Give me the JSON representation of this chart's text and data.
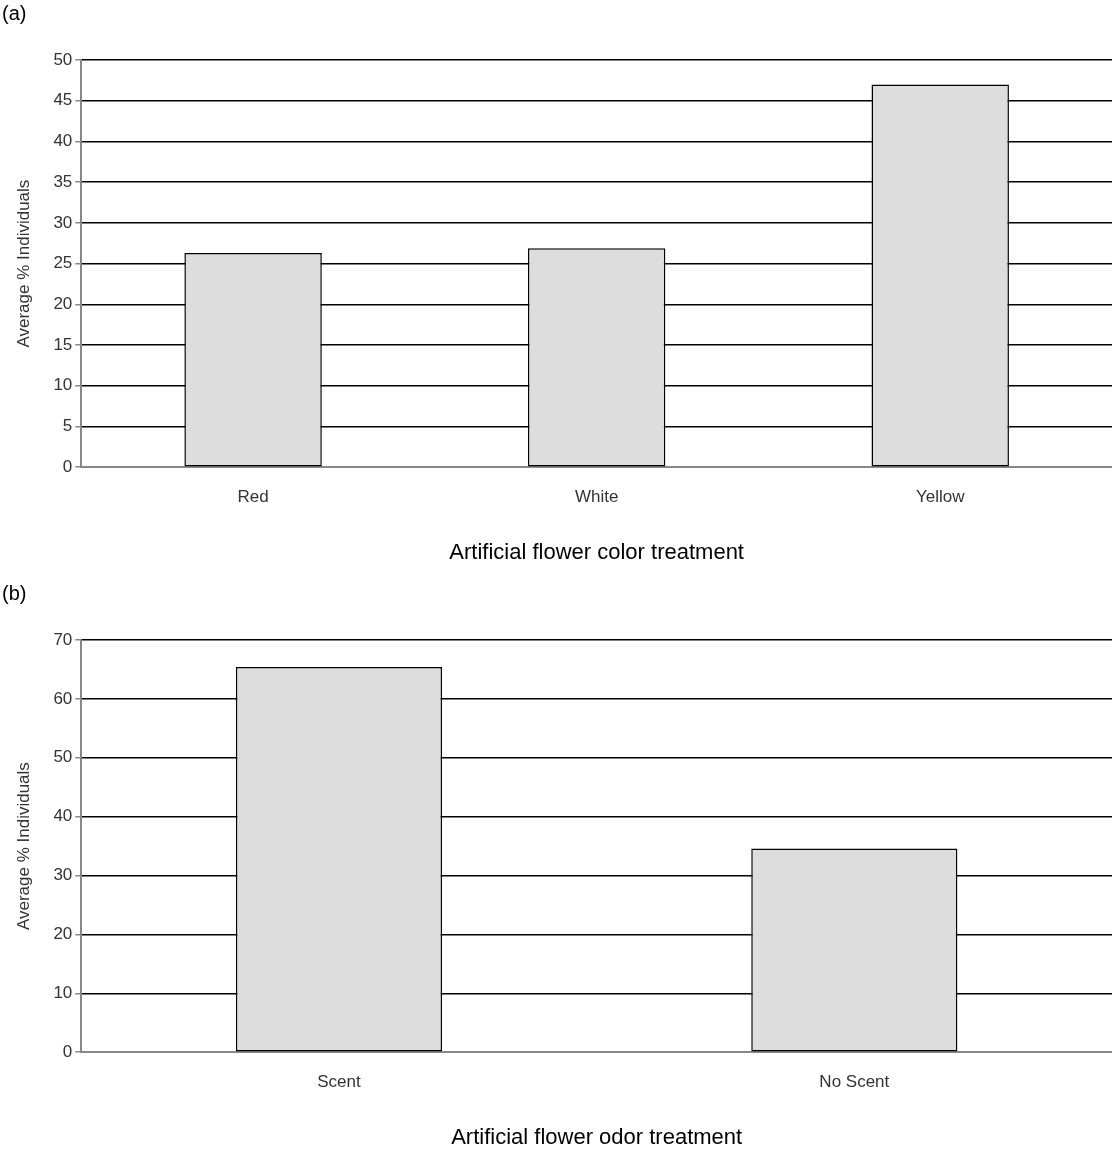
{
  "chart_data": [
    {
      "type": "bar",
      "categories": [
        "Red",
        "White",
        "Yellow"
      ],
      "values": [
        26.3,
        26.9,
        47.0
      ],
      "color": "#dddddd",
      "xlabel": "Artificial flower color treatment",
      "ylabel": "Average % Individuals",
      "ylim": [
        0,
        50
      ],
      "yticks": [
        0,
        5,
        10,
        15,
        20,
        25,
        30,
        35,
        40,
        45,
        50
      ],
      "grid": "y",
      "legend": false,
      "annotations": [
        "(a)"
      ]
    },
    {
      "type": "bar",
      "categories": [
        "Scent",
        "No Scent"
      ],
      "values": [
        65.4,
        34.6
      ],
      "color": "#dddddd",
      "xlabel": "Artificial flower odor treatment",
      "ylabel": "Average % Individuals",
      "ylim": [
        0,
        70
      ],
      "yticks": [
        0,
        10,
        20,
        30,
        40,
        50,
        60,
        70
      ],
      "grid": "y",
      "legend": false,
      "annotations": [
        "(b)"
      ]
    }
  ]
}
